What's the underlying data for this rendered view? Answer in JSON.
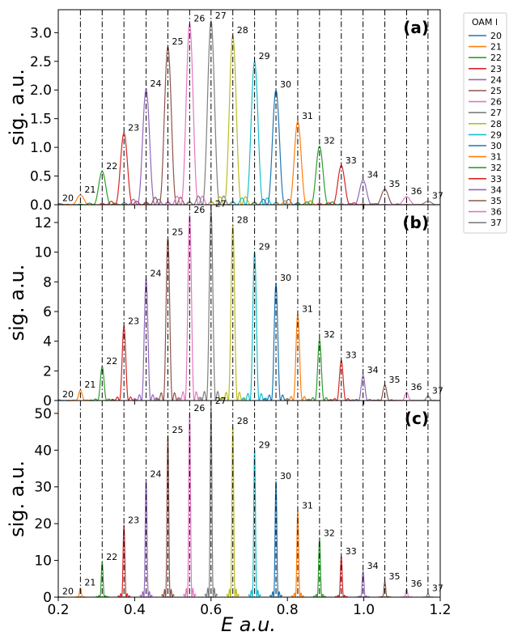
{
  "figure": {
    "xlabel": "E a.u.",
    "ylabel": "sig. a.u.",
    "legend_title": "OAM l",
    "x_ticks": [
      "0.2",
      "0.4",
      "0.6",
      "0.8",
      "1.0",
      "1.2"
    ]
  },
  "chart_data": [
    {
      "type": "line",
      "panel_label": "(a)",
      "xlim": [
        0.2,
        1.2
      ],
      "ylim": [
        0,
        3.4
      ],
      "y_ticks": [
        0.0,
        0.5,
        1.0,
        1.5,
        2.0,
        2.5,
        3.0
      ],
      "y_tick_labels": [
        "0.0",
        "0.5",
        "1.0",
        "1.5",
        "2.0",
        "2.5",
        "3.0"
      ],
      "peak_width": 0.0105,
      "series": [
        {
          "name": "20",
          "x": 0.2,
          "y": 0.02
        },
        {
          "name": "21",
          "x": 0.258,
          "y": 0.17
        },
        {
          "name": "22",
          "x": 0.315,
          "y": 0.58
        },
        {
          "name": "23",
          "x": 0.372,
          "y": 1.25
        },
        {
          "name": "24",
          "x": 0.43,
          "y": 2.02
        },
        {
          "name": "25",
          "x": 0.487,
          "y": 2.75
        },
        {
          "name": "26",
          "x": 0.544,
          "y": 3.15
        },
        {
          "name": "27",
          "x": 0.6,
          "y": 3.2
        },
        {
          "name": "28",
          "x": 0.657,
          "y": 2.95
        },
        {
          "name": "29",
          "x": 0.714,
          "y": 2.5
        },
        {
          "name": "30",
          "x": 0.77,
          "y": 2.0
        },
        {
          "name": "31",
          "x": 0.827,
          "y": 1.45
        },
        {
          "name": "32",
          "x": 0.884,
          "y": 1.02
        },
        {
          "name": "33",
          "x": 0.941,
          "y": 0.68
        },
        {
          "name": "34",
          "x": 0.998,
          "y": 0.43
        },
        {
          "name": "35",
          "x": 1.055,
          "y": 0.27
        },
        {
          "name": "36",
          "x": 1.112,
          "y": 0.14
        },
        {
          "name": "37",
          "x": 1.168,
          "y": 0.06
        }
      ]
    },
    {
      "type": "line",
      "panel_label": "(b)",
      "xlim": [
        0.2,
        1.2
      ],
      "ylim": [
        0,
        13.2
      ],
      "y_ticks": [
        0,
        2,
        4,
        6,
        8,
        10,
        12
      ],
      "y_tick_labels": [
        "0",
        "2",
        "4",
        "6",
        "8",
        "10",
        "12"
      ],
      "peak_width": 0.0055,
      "series": [
        {
          "name": "20",
          "x": 0.2,
          "y": 0.05
        },
        {
          "name": "21",
          "x": 0.258,
          "y": 0.7
        },
        {
          "name": "22",
          "x": 0.315,
          "y": 2.3
        },
        {
          "name": "23",
          "x": 0.372,
          "y": 5.0
        },
        {
          "name": "24",
          "x": 0.43,
          "y": 8.2
        },
        {
          "name": "25",
          "x": 0.487,
          "y": 11.0
        },
        {
          "name": "26",
          "x": 0.544,
          "y": 12.5
        },
        {
          "name": "27",
          "x": 0.6,
          "y": 12.9
        },
        {
          "name": "28",
          "x": 0.657,
          "y": 11.8
        },
        {
          "name": "29",
          "x": 0.714,
          "y": 10.0
        },
        {
          "name": "30",
          "x": 0.77,
          "y": 7.9
        },
        {
          "name": "31",
          "x": 0.827,
          "y": 5.8
        },
        {
          "name": "32",
          "x": 0.884,
          "y": 4.1
        },
        {
          "name": "33",
          "x": 0.941,
          "y": 2.7
        },
        {
          "name": "34",
          "x": 0.998,
          "y": 1.7
        },
        {
          "name": "35",
          "x": 1.055,
          "y": 1.05
        },
        {
          "name": "36",
          "x": 1.112,
          "y": 0.55
        },
        {
          "name": "37",
          "x": 1.168,
          "y": 0.3
        }
      ]
    },
    {
      "type": "line",
      "panel_label": "(c)",
      "xlim": [
        0.2,
        1.2
      ],
      "ylim": [
        0,
        53.5
      ],
      "y_ticks": [
        0,
        10,
        20,
        30,
        40,
        50
      ],
      "y_tick_labels": [
        "0",
        "10",
        "20",
        "30",
        "40",
        "50"
      ],
      "peak_width": 0.0027,
      "series": [
        {
          "name": "20",
          "x": 0.2,
          "y": 0.1
        },
        {
          "name": "21",
          "x": 0.258,
          "y": 2.5
        },
        {
          "name": "22",
          "x": 0.315,
          "y": 9.5
        },
        {
          "name": "23",
          "x": 0.372,
          "y": 19.5
        },
        {
          "name": "24",
          "x": 0.43,
          "y": 32.0
        },
        {
          "name": "25",
          "x": 0.487,
          "y": 44.0
        },
        {
          "name": "26",
          "x": 0.544,
          "y": 50.0
        },
        {
          "name": "27",
          "x": 0.6,
          "y": 52.0
        },
        {
          "name": "28",
          "x": 0.657,
          "y": 46.5
        },
        {
          "name": "29",
          "x": 0.714,
          "y": 40.0
        },
        {
          "name": "30",
          "x": 0.77,
          "y": 31.5
        },
        {
          "name": "31",
          "x": 0.827,
          "y": 23.5
        },
        {
          "name": "32",
          "x": 0.884,
          "y": 16.0
        },
        {
          "name": "33",
          "x": 0.941,
          "y": 11.0
        },
        {
          "name": "34",
          "x": 0.998,
          "y": 7.0
        },
        {
          "name": "35",
          "x": 1.055,
          "y": 4.2
        },
        {
          "name": "36",
          "x": 1.112,
          "y": 2.2
        },
        {
          "name": "37",
          "x": 1.168,
          "y": 1.0
        }
      ]
    }
  ],
  "series_colors": [
    "#1f77b4",
    "#ff7f0e",
    "#2ca02c",
    "#d62728",
    "#9467bd",
    "#8c564b",
    "#e377c2",
    "#7f7f7f",
    "#bcbd22",
    "#17becf",
    "#1f77b4",
    "#ff7f0e",
    "#2ca02c",
    "#d62728",
    "#9467bd",
    "#8c564b",
    "#e377c2",
    "#7f7f7f"
  ],
  "vline_x": [
    0.258,
    0.315,
    0.372,
    0.43,
    0.487,
    0.544,
    0.6,
    0.657,
    0.714,
    0.77,
    0.827,
    0.884,
    0.941,
    0.998,
    1.055,
    1.112,
    1.168
  ]
}
